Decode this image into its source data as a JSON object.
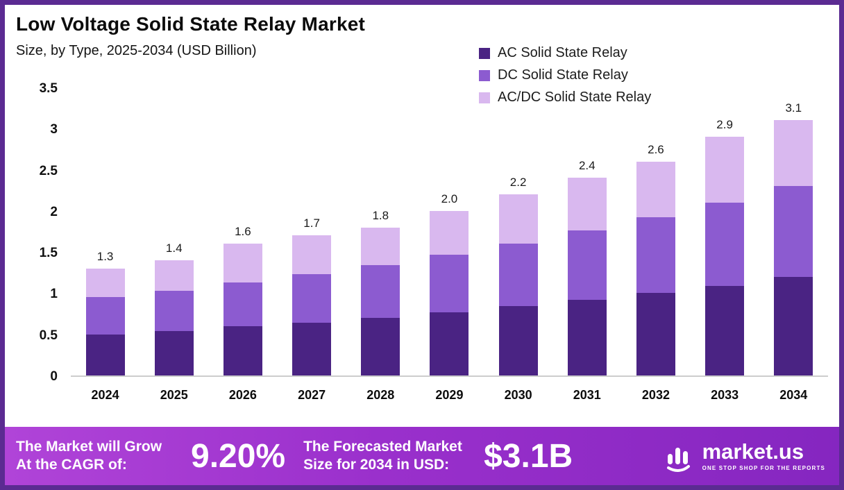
{
  "header": {
    "title": "Low Voltage Solid State Relay Market",
    "subtitle": "Size, by Type, 2025-2034 (USD Billion)"
  },
  "legend": [
    {
      "label": "AC Solid State Relay",
      "color": "#4a2383"
    },
    {
      "label": "DC Solid State Relay",
      "color": "#8c5bd0"
    },
    {
      "label": "AC/DC Solid State Relay",
      "color": "#d9b8ef"
    }
  ],
  "chart_data": {
    "type": "bar",
    "stacked": true,
    "title": "Low Voltage Solid State Relay Market Size, by Type, 2025-2034 (USD Billion)",
    "xlabel": "",
    "ylabel": "USD Billion",
    "ylim": [
      0,
      3.5
    ],
    "yticks": [
      0,
      0.5,
      1,
      1.5,
      2,
      2.5,
      3,
      3.5
    ],
    "grid": false,
    "legend_position": "top-right",
    "categories": [
      "2024",
      "2025",
      "2026",
      "2027",
      "2028",
      "2029",
      "2030",
      "2031",
      "2032",
      "2033",
      "2034"
    ],
    "series": [
      {
        "name": "AC Solid State Relay",
        "short": "ac",
        "color": "#4a2383",
        "values": [
          0.5,
          0.54,
          0.6,
          0.64,
          0.7,
          0.77,
          0.84,
          0.92,
          1.0,
          1.09,
          1.2
        ]
      },
      {
        "name": "DC Solid State Relay",
        "short": "dc",
        "color": "#8c5bd0",
        "values": [
          0.45,
          0.49,
          0.53,
          0.59,
          0.64,
          0.7,
          0.76,
          0.84,
          0.92,
          1.01,
          1.1
        ]
      },
      {
        "name": "AC/DC Solid State Relay",
        "short": "acdc",
        "color": "#d9b8ef",
        "values": [
          0.35,
          0.37,
          0.47,
          0.47,
          0.46,
          0.53,
          0.6,
          0.64,
          0.68,
          0.8,
          0.8
        ]
      }
    ],
    "totals": [
      1.3,
      1.4,
      1.6,
      1.7,
      1.8,
      2.0,
      2.2,
      2.4,
      2.6,
      2.9,
      3.1
    ]
  },
  "banner": {
    "cagr_label": "The Market will Grow At the CAGR of:",
    "cagr_value": "9.20%",
    "forecast_label": "The Forecasted Market Size for 2034 in USD:",
    "forecast_value": "$3.1B",
    "brand_name": "market.us",
    "brand_tagline": "ONE STOP SHOP FOR THE REPORTS"
  },
  "colors": {
    "frame_border": "#5b2b92",
    "banner_gradient_start": "#b044d8",
    "banner_gradient_end": "#8526c0",
    "background": "#ffffff"
  }
}
